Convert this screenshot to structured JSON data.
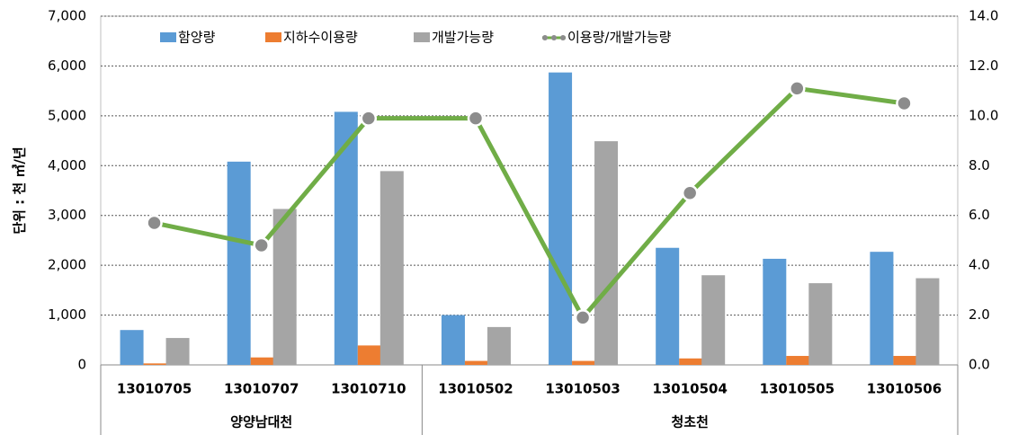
{
  "chart_data": {
    "type": "bar",
    "y_label": "단위 : 천 ㎥/년",
    "categories": [
      "13010705",
      "13010707",
      "13010710",
      "13010502",
      "13010503",
      "13010504",
      "13010505",
      "13010506"
    ],
    "category_groups": [
      "양양남대천",
      "양양남대천",
      "양양남대천",
      "청초천",
      "청초천",
      "청초천",
      "청초천",
      "청초천"
    ],
    "series": [
      {
        "name": "함양량",
        "color": "#5b9bd5",
        "values": [
          700,
          4080,
          5080,
          1000,
          5870,
          2350,
          2130,
          2270
        ]
      },
      {
        "name": "지하수이용량",
        "color": "#ed7d31",
        "values": [
          30,
          150,
          390,
          80,
          80,
          130,
          180,
          180
        ]
      },
      {
        "name": "개발가능량",
        "color": "#a5a5a5",
        "values": [
          540,
          3130,
          3890,
          760,
          4490,
          1800,
          1640,
          1740
        ]
      },
      {
        "name": "이용량/개발가능량",
        "color": "#70ad47",
        "marker_color": "#8c8c8c",
        "type": "line",
        "axis": "y2",
        "values": [
          5.7,
          4.8,
          9.9,
          9.9,
          1.9,
          6.9,
          11.1,
          10.5
        ]
      }
    ],
    "ylim": [
      0,
      7000
    ],
    "yticks": [
      {
        "value": 0,
        "label": "0"
      },
      {
        "value": 1000,
        "label": "1,000"
      },
      {
        "value": 2000,
        "label": "2,000"
      },
      {
        "value": 3000,
        "label": "3,000"
      },
      {
        "value": 4000,
        "label": "4,000"
      },
      {
        "value": 5000,
        "label": "5,000"
      },
      {
        "value": 6000,
        "label": "6,000"
      },
      {
        "value": 7000,
        "label": "7,000"
      }
    ],
    "y2lim": [
      0,
      14
    ],
    "y2ticks": [
      {
        "value": 0,
        "label": "0.0"
      },
      {
        "value": 2,
        "label": "2.0"
      },
      {
        "value": 4,
        "label": "4.0"
      },
      {
        "value": 6,
        "label": "6.0"
      },
      {
        "value": 8,
        "label": "8.0"
      },
      {
        "value": 10,
        "label": "10.0"
      },
      {
        "value": 12,
        "label": "12.0"
      },
      {
        "value": 14,
        "label": "14.0"
      }
    ],
    "grid": true,
    "legend": "top"
  }
}
